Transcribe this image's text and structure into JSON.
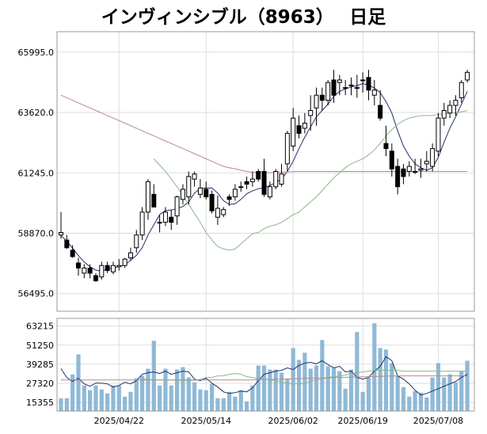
{
  "title": "インヴィンシブル（8963）　 日足",
  "chart_data": [
    {
      "type": "candlestick",
      "title": "インヴィンシブル（8963）　 日足",
      "ylim": [
        55800,
        66800
      ],
      "yticks": [
        56495,
        58870,
        61245,
        63620,
        65995
      ],
      "ytick_labels": [
        "56495.0",
        "58870.0",
        "61245.0",
        "63620.0",
        "65995.0"
      ],
      "grid": true,
      "x_tick_labels": [
        {
          "index": 10,
          "label": "2025/04/22"
        },
        {
          "index": 25,
          "label": "2025/05/14"
        },
        {
          "index": 40,
          "label": "2025/06/02"
        },
        {
          "index": 52,
          "label": "2025/06/19"
        },
        {
          "index": 65,
          "label": "2025/07/08"
        }
      ],
      "candles": [
        [
          58800,
          59700,
          58650,
          58900
        ],
        [
          58600,
          58800,
          58250,
          58300
        ],
        [
          58200,
          58400,
          57900,
          57950
        ],
        [
          57700,
          57900,
          57200,
          57500
        ],
        [
          57300,
          57650,
          57100,
          57500
        ],
        [
          57500,
          57650,
          57100,
          57300
        ],
        [
          57200,
          57300,
          56950,
          57000
        ],
        [
          57150,
          57750,
          57050,
          57600
        ],
        [
          57600,
          57750,
          57300,
          57400
        ],
        [
          57350,
          57750,
          57250,
          57600
        ],
        [
          57550,
          57850,
          57400,
          57600
        ],
        [
          57600,
          57900,
          57500,
          57850
        ],
        [
          57900,
          58300,
          57800,
          58100
        ],
        [
          58300,
          59000,
          58100,
          58800
        ],
        [
          58800,
          59900,
          58600,
          59700
        ],
        [
          59700,
          61000,
          59400,
          60900
        ],
        [
          60400,
          60800,
          59900,
          59900
        ],
        [
          59300,
          59600,
          58900,
          59300
        ],
        [
          59300,
          59900,
          59150,
          59700
        ],
        [
          59500,
          59800,
          59000,
          59300
        ],
        [
          59550,
          60350,
          59200,
          60300
        ],
        [
          60200,
          60800,
          60000,
          60600
        ],
        [
          60300,
          61300,
          60000,
          61100
        ],
        [
          61000,
          61300,
          60700,
          61200
        ],
        [
          60400,
          61000,
          60250,
          60650
        ],
        [
          60600,
          60900,
          60200,
          60300
        ],
        [
          60400,
          60550,
          59650,
          59750
        ],
        [
          59500,
          60350,
          59200,
          59850
        ],
        [
          59600,
          59900,
          59500,
          59800
        ],
        [
          60300,
          60400,
          59950,
          60200
        ],
        [
          60300,
          60800,
          60150,
          60600
        ],
        [
          60700,
          60900,
          60500,
          60700
        ],
        [
          60900,
          61100,
          60600,
          60800
        ],
        [
          60900,
          61300,
          60700,
          61000
        ],
        [
          61300,
          61400,
          60900,
          61000
        ],
        [
          61300,
          61800,
          60300,
          60400
        ],
        [
          60300,
          60900,
          60200,
          60700
        ],
        [
          60700,
          61400,
          60600,
          61300
        ],
        [
          60800,
          61600,
          60700,
          61200
        ],
        [
          61600,
          62900,
          61300,
          62800
        ],
        [
          62300,
          63800,
          62100,
          63400
        ],
        [
          63100,
          63500,
          62600,
          62800
        ],
        [
          63000,
          63600,
          62800,
          63200
        ],
        [
          63500,
          64300,
          62900,
          63700
        ],
        [
          63800,
          64600,
          63100,
          64300
        ],
        [
          64300,
          64600,
          63700,
          64100
        ],
        [
          64100,
          64900,
          63900,
          64800
        ],
        [
          64900,
          65300,
          64000,
          64300
        ],
        [
          64800,
          65100,
          64300,
          64900
        ],
        [
          64600,
          64900,
          64300,
          64600
        ],
        [
          64700,
          65000,
          64300,
          64700
        ],
        [
          64600,
          65100,
          64200,
          64600
        ],
        [
          64900,
          65200,
          64400,
          64900
        ],
        [
          65000,
          65300,
          64100,
          64500
        ],
        [
          64300,
          64900,
          63900,
          64500
        ],
        [
          63900,
          64500,
          63300,
          63400
        ],
        [
          62400,
          63100,
          61900,
          62200
        ],
        [
          62100,
          62400,
          61100,
          61400
        ],
        [
          61500,
          61800,
          60400,
          60700
        ],
        [
          61400,
          61600,
          60800,
          61100
        ],
        [
          61300,
          61700,
          61100,
          61500
        ],
        [
          61300,
          61800,
          61200,
          61300
        ],
        [
          61350,
          61800,
          61050,
          61400
        ],
        [
          61600,
          62100,
          61300,
          61700
        ],
        [
          61500,
          62400,
          61300,
          62200
        ],
        [
          62100,
          63600,
          61900,
          63400
        ],
        [
          63400,
          64000,
          63100,
          63700
        ],
        [
          63600,
          64100,
          63400,
          63900
        ],
        [
          63900,
          64300,
          63500,
          64100
        ],
        [
          64200,
          64900,
          64000,
          64800
        ],
        [
          64900,
          65300,
          64800,
          65200
        ]
      ],
      "series": [
        {
          "name": "",
          "color": "#20306e",
          "values": [
            58780,
            58560,
            58280,
            57990,
            57740,
            57550,
            57420,
            57380,
            57460,
            57500,
            57560,
            57620,
            57800,
            58000,
            58300,
            58800,
            59200,
            59600,
            59760,
            59780,
            59840,
            59920,
            60100,
            60450,
            60630,
            60650,
            60650,
            60450,
            60150,
            60000,
            60030,
            60200,
            60420,
            60540,
            60620,
            60660,
            60750,
            60860,
            61000,
            61300,
            61700,
            62200,
            62650,
            63050,
            63450,
            63700,
            63950,
            64250,
            64450,
            64550,
            64620,
            64680,
            64760,
            64700,
            64580,
            64400,
            64050,
            63600,
            62900,
            62300,
            61900,
            61600,
            61450,
            61350,
            61450,
            61850,
            62450,
            63000,
            63450,
            63950,
            64450
          ]
        },
        {
          "name": "",
          "color": "#8ab88a",
          "values": [
            61800,
            61550,
            61300,
            61000,
            60700,
            60350,
            60000,
            59650,
            59300,
            58900,
            58600,
            58350,
            58250,
            58200,
            58250,
            58450,
            58650,
            58850,
            58900,
            59050,
            59150,
            59200,
            59300,
            59450,
            59600,
            59700,
            59900,
            60100,
            60300,
            60550,
            60800,
            61050,
            61250,
            61450,
            61600,
            61700,
            61800,
            61950,
            62150,
            62400,
            62700,
            62950,
            63150,
            63300,
            63400,
            63450,
            63500,
            63500,
            63500,
            63550,
            63550,
            63600,
            63600,
            63650,
            63700
          ]
        },
        {
          "name": "",
          "color": "#b88a8a",
          "values": [
            64300,
            64200,
            64100,
            64000,
            63900,
            63800,
            63700,
            63600,
            63500,
            63400,
            63300,
            63200,
            63100,
            63000,
            62900,
            62800,
            62700,
            62600,
            62500,
            62400,
            62300,
            62200,
            62100,
            62000,
            61900,
            61800,
            61700,
            61600,
            61500,
            61450,
            61400,
            61350,
            61300,
            61270,
            61260,
            61250,
            61250,
            61260,
            61270,
            61280,
            61290,
            61300,
            61300,
            61300,
            61300,
            61300,
            61300,
            61300,
            61300,
            61300,
            61300,
            61300,
            61300,
            61300,
            61300,
            61300,
            61300,
            61300,
            61300,
            61300,
            61300,
            61300,
            61300,
            61300,
            61300,
            61300,
            61300,
            61300,
            61300,
            61300,
            61300
          ]
        }
      ]
    },
    {
      "type": "bar",
      "ylim": [
        10000,
        68000
      ],
      "yticks": [
        15355,
        27320,
        39285,
        51250,
        63215
      ],
      "ytick_labels": [
        "15355",
        "27320",
        "39285",
        "51250",
        "63215"
      ],
      "grid": true,
      "values": [
        18000,
        18000,
        33000,
        45500,
        26000,
        23000,
        26000,
        23500,
        21000,
        26000,
        26000,
        19000,
        22000,
        30500,
        32000,
        36500,
        54000,
        26000,
        36500,
        26000,
        36000,
        37500,
        31000,
        28000,
        23500,
        23000,
        27000,
        18000,
        18000,
        22000,
        19000,
        23000,
        16000,
        26000,
        38500,
        38500,
        36000,
        36000,
        34000,
        30000,
        49500,
        42000,
        46500,
        36500,
        38500,
        54500,
        38000,
        37000,
        35000,
        24000,
        36000,
        59500,
        22000,
        31000,
        65000,
        49500,
        48500,
        40000,
        32000,
        25000,
        19000,
        22500,
        21500,
        18500,
        31000,
        40000,
        31000,
        33000,
        28000,
        35000,
        41500
      ],
      "series": [
        {
          "name": "",
          "color": "#20306e",
          "values": [
            36500,
            31000,
            28500,
            30500,
            27000,
            25500,
            27500,
            27500,
            27000,
            25000,
            26000,
            28000,
            27000,
            29000,
            33000,
            34000,
            34500,
            33500,
            35000,
            33000,
            34000,
            35000,
            34500,
            30000,
            29000,
            30500,
            27500,
            25000,
            22000,
            21000,
            21500,
            22500,
            22000,
            24500,
            29000,
            33000,
            34000,
            35000,
            35500,
            37000,
            36000,
            38500,
            40000,
            40500,
            39500,
            41500,
            39000,
            37000,
            38000,
            34500,
            35000,
            31000,
            30000,
            31000,
            35000,
            38000,
            44000,
            41500,
            32000,
            30000,
            27000,
            23000,
            20000,
            21000,
            22500,
            24000,
            25500,
            27000,
            28500,
            31000,
            33000
          ]
        },
        {
          "name": "",
          "color": "#8ab88a",
          "values": [
            30000,
            29800,
            29600,
            29400,
            29400,
            29400,
            29200,
            29200,
            29200,
            29200,
            29800,
            31000,
            31000,
            32000,
            32000,
            33000,
            33500,
            33000,
            31500,
            31000,
            30000,
            30000,
            29500,
            29000,
            28000,
            27500,
            27000,
            27000,
            27500,
            28500,
            29500,
            30000,
            31000,
            31500,
            32000,
            32500,
            33500,
            34000,
            34500,
            35000,
            35500,
            35500,
            35500,
            35500,
            35500,
            35000,
            35000,
            35000,
            35000,
            35000,
            35000,
            35000,
            35000,
            35000,
            35000,
            35000,
            35000
          ]
        },
        {
          "name": "",
          "color": "#b88a8a",
          "values": [
            29500,
            29500,
            29500,
            29500,
            29500,
            29500,
            29500,
            29500,
            29500,
            29500,
            29500,
            29500,
            29500,
            29500,
            29500,
            29500,
            29500,
            29500,
            29500,
            29500,
            29500,
            29500,
            29500,
            29500,
            29500,
            29500,
            29500,
            29500,
            29500,
            29500,
            29500,
            29500,
            29500,
            29500,
            29600,
            29700,
            29800,
            29900,
            30000,
            30100,
            30200,
            30300,
            30400,
            30500,
            30600,
            30700,
            30800,
            30900,
            31000,
            31100,
            31200,
            31300,
            31400,
            31500,
            31600,
            31700,
            31800,
            31900,
            32000,
            32000,
            32000,
            32000,
            32000,
            32000,
            32000,
            32000,
            32000,
            32000,
            32000,
            32000,
            32000
          ]
        }
      ]
    }
  ]
}
